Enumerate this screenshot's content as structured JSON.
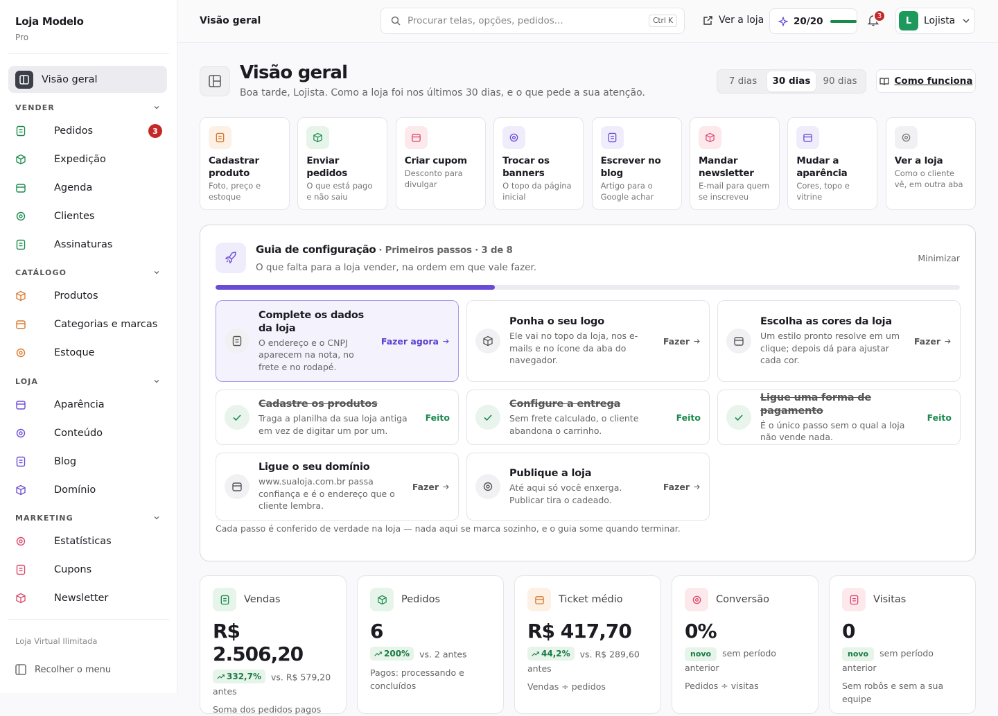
{
  "sidebar": {
    "brand": "Loja Modelo",
    "plan": "Pro",
    "active": "Visão geral",
    "sections": [
      {
        "title": "VENDER",
        "items": [
          {
            "label": "Pedidos",
            "badge": "3"
          },
          {
            "label": "Expedição"
          },
          {
            "label": "Agenda"
          },
          {
            "label": "Clientes"
          },
          {
            "label": "Assinaturas"
          }
        ]
      },
      {
        "title": "CATÁLOGO",
        "items": [
          {
            "label": "Produtos"
          },
          {
            "label": "Categorias e marcas"
          },
          {
            "label": "Estoque"
          }
        ]
      },
      {
        "title": "LOJA",
        "items": [
          {
            "label": "Aparência"
          },
          {
            "label": "Conteúdo"
          },
          {
            "label": "Blog"
          },
          {
            "label": "Domínio"
          }
        ]
      },
      {
        "title": "MARKETING",
        "items": [
          {
            "label": "Estatísticas"
          },
          {
            "label": "Cupons"
          },
          {
            "label": "Newsletter"
          }
        ]
      }
    ],
    "footer_note": "Loja Virtual Ilimitada",
    "collapse": "Recolher o menu"
  },
  "topbar": {
    "page": "Visão geral",
    "search_placeholder": "Procurar telas, opções, pedidos...",
    "shortcut": "Ctrl K",
    "view_store": "Ver a loja",
    "progress": "20/20",
    "notifications": "3",
    "avatar": "L",
    "user": "Lojista"
  },
  "header": {
    "title": "Visão geral",
    "subtitle": "Boa tarde, Lojista. Como a loja foi nos últimos 30 dias, e o que pede a sua atenção.",
    "ranges": [
      "7 dias",
      "30 dias",
      "90 dias"
    ],
    "help": "Como funciona"
  },
  "quick_actions": [
    {
      "title": "Cadastrar produto",
      "desc": "Foto, preço e estoque"
    },
    {
      "title": "Enviar pedidos",
      "desc": "O que está pago e não saiu"
    },
    {
      "title": "Criar cupom",
      "desc": "Desconto para divulgar"
    },
    {
      "title": "Trocar os banners",
      "desc": "O topo da página inicial"
    },
    {
      "title": "Escrever no blog",
      "desc": "Artigo para o Google achar"
    },
    {
      "title": "Mandar newsletter",
      "desc": "E-mail para quem se inscreveu"
    },
    {
      "title": "Mudar a aparência",
      "desc": "Cores, topo e vitrine"
    },
    {
      "title": "Ver a loja",
      "desc": "Como o cliente vê, em outra aba"
    }
  ],
  "guide": {
    "title": "Guia de configuração",
    "meta": "· Primeiros passos · 3 de 8",
    "subtitle": "O que falta para a loja vender, na ordem em que vale fazer.",
    "minimize": "Minimizar",
    "steps": [
      {
        "title": "Complete os dados da loja",
        "desc": "O endereço e o CNPJ aparecem na nota, no frete e no rodapé.",
        "action": "Fazer agora",
        "done": false
      },
      {
        "title": "Ponha o seu logo",
        "desc": "Ele vai no topo da loja, nos e-mails e no ícone da aba do navegador.",
        "action": "Fazer",
        "done": false
      },
      {
        "title": "Escolha as cores da loja",
        "desc": "Um estilo pronto resolve em um clique; depois dá para ajustar cada cor.",
        "action": "Fazer",
        "done": false
      },
      {
        "title": "Cadastre os produtos",
        "desc": "Traga a planilha da sua loja antiga em vez de digitar um por um.",
        "action": "Feito",
        "done": true
      },
      {
        "title": "Configure a entrega",
        "desc": "Sem frete calculado, o cliente abandona o carrinho.",
        "action": "Feito",
        "done": true
      },
      {
        "title": "Ligue uma forma de pagamento",
        "desc": "É o único passo sem o qual a loja não vende nada.",
        "action": "Feito",
        "done": true
      },
      {
        "title": "Ligue o seu domínio",
        "desc": "www.sualoja.com.br passa confiança e é o endereço que o cliente lembra.",
        "action": "Fazer",
        "done": false
      },
      {
        "title": "Publique a loja",
        "desc": "Até aqui só você enxerga. Publicar tira o cadeado.",
        "action": "Fazer",
        "done": false
      }
    ],
    "footnote": "Cada passo é conferido de verdade na loja — nada aqui se marca sozinho, e o guia some quando terminar."
  },
  "kpis": [
    {
      "label": "Vendas",
      "value": "R$ 2.506,20",
      "change": "332,7%",
      "compare": "vs. R$ 579,20 antes",
      "note": "Soma dos pedidos pagos"
    },
    {
      "label": "Pedidos",
      "value": "6",
      "change": "200%",
      "compare": "vs. 2 antes",
      "note": "Pagos: processando e concluídos"
    },
    {
      "label": "Ticket médio",
      "value": "R$ 417,70",
      "change": "44,2%",
      "compare": "vs. R$ 289,60 antes",
      "note": "Vendas ÷ pedidos"
    },
    {
      "label": "Conversão",
      "value": "0%",
      "badge": "novo",
      "compare": "sem período anterior",
      "note": "Pedidos ÷ visitas"
    },
    {
      "label": "Visitas",
      "value": "0",
      "badge": "novo",
      "compare": "sem período anterior",
      "note": "Sem robôs e sem a sua equipe"
    }
  ]
}
